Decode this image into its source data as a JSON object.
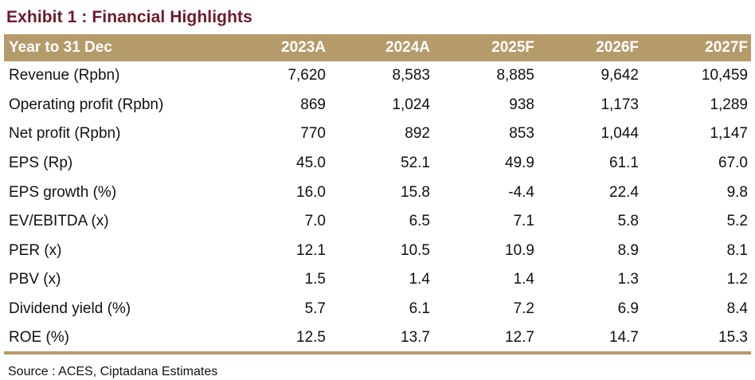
{
  "title": "Exhibit 1 : Financial Highlights",
  "table": {
    "header": {
      "label": "Year to 31 Dec",
      "columns": [
        "2023A",
        "2024A",
        "2025F",
        "2026F",
        "2027F"
      ]
    },
    "rows": [
      {
        "label": "Revenue (Rpbn)",
        "values": [
          "7,620",
          "8,583",
          "8,885",
          "9,642",
          "10,459"
        ]
      },
      {
        "label": "Operating profit (Rpbn)",
        "values": [
          "869",
          "1,024",
          "938",
          "1,173",
          "1,289"
        ]
      },
      {
        "label": "Net profit (Rpbn)",
        "values": [
          "770",
          "892",
          "853",
          "1,044",
          "1,147"
        ]
      },
      {
        "label": "EPS (Rp)",
        "values": [
          "45.0",
          "52.1",
          "49.9",
          "61.1",
          "67.0"
        ]
      },
      {
        "label": "EPS growth (%)",
        "values": [
          "16.0",
          "15.8",
          "-4.4",
          "22.4",
          "9.8"
        ]
      },
      {
        "label": "EV/EBITDA (x)",
        "values": [
          "7.0",
          "6.5",
          "7.1",
          "5.8",
          "5.2"
        ]
      },
      {
        "label": "PER (x)",
        "values": [
          "12.1",
          "10.5",
          "10.9",
          "8.9",
          "8.1"
        ]
      },
      {
        "label": "PBV (x)",
        "values": [
          "1.5",
          "1.4",
          "1.4",
          "1.3",
          "1.2"
        ]
      },
      {
        "label": "Dividend yield (%)",
        "values": [
          "5.7",
          "6.1",
          "7.2",
          "6.9",
          "8.4"
        ]
      },
      {
        "label": "ROE (%)",
        "values": [
          "12.5",
          "13.7",
          "12.7",
          "14.7",
          "15.3"
        ]
      }
    ]
  },
  "source": "Source : ACES, Ciptadana Estimates",
  "colors": {
    "title": "#6e1a2c",
    "header_bg": "#b59a6a",
    "header_text": "#ffffff",
    "body_text": "#111111"
  }
}
